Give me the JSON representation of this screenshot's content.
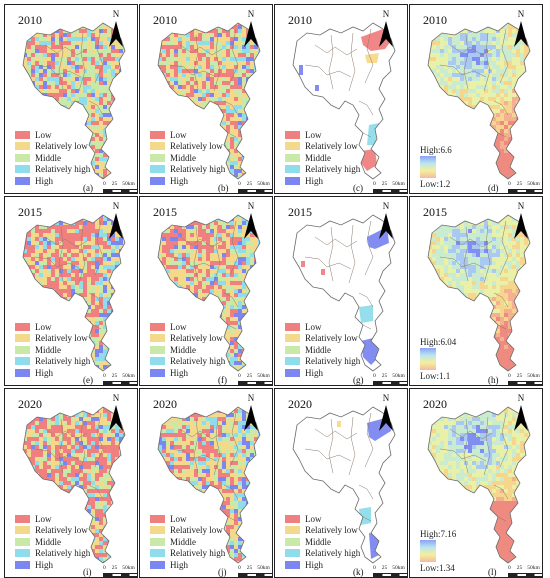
{
  "years": [
    "2010",
    "2015",
    "2020"
  ],
  "north_label": "N",
  "class_legend": [
    "Low",
    "Relatively low",
    "Middle",
    "Relatively high",
    "High"
  ],
  "class_colors": [
    "#f08080",
    "#f5d98a",
    "#c8e9a8",
    "#8fdcea",
    "#7b86f0"
  ],
  "scale_bar": {
    "labels": [
      "0",
      "25",
      "50km"
    ]
  },
  "panel_letters": [
    [
      "(a)",
      "(b)",
      "(c)",
      "(d)"
    ],
    [
      "(e)",
      "(f)",
      "(g)",
      "(h)"
    ],
    [
      "(i)",
      "(j)",
      "(k)",
      "(l)"
    ]
  ],
  "continuous_legends": [
    {
      "high": "High:6.6",
      "low": "Low:1.2"
    },
    {
      "high": "High:6.04",
      "low": "Low:1.1"
    },
    {
      "high": "High:7.16",
      "low": "Low:1.34"
    }
  ]
}
